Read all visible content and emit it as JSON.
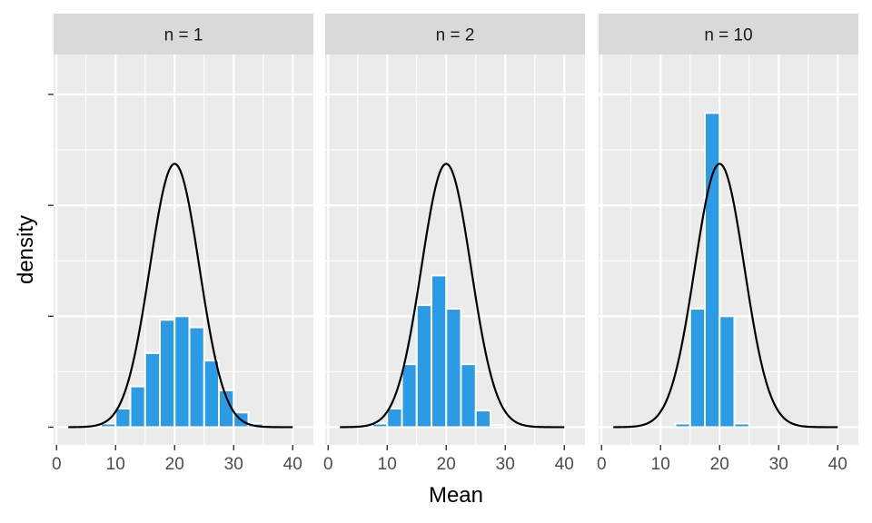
{
  "chart_data": {
    "type": "bar",
    "xlabel": "Mean",
    "ylabel": "density",
    "xlim": [
      -0.5,
      43.5
    ],
    "ylim": [
      -0.0064,
      0.1344
    ],
    "x_ticks": [
      0,
      10,
      20,
      30,
      40
    ],
    "grid": true,
    "bin_width": 2.5,
    "bar_color": "#2c9be6",
    "bar_outline_color": "#ffffff",
    "curve_color": "#000000",
    "panel_background": "#ebebeb",
    "strip_background": "#d9d9d9",
    "curve": {
      "distribution": "normal",
      "mean": 20,
      "sd": 4.2,
      "x_range": [
        2,
        40
      ]
    },
    "panels": [
      {
        "label": "n = 1",
        "bars": [
          {
            "x": 8.75,
            "density": 0.0013
          },
          {
            "x": 11.25,
            "density": 0.0067
          },
          {
            "x": 13.75,
            "density": 0.0147
          },
          {
            "x": 16.25,
            "density": 0.0267
          },
          {
            "x": 18.75,
            "density": 0.0387
          },
          {
            "x": 21.25,
            "density": 0.04
          },
          {
            "x": 23.75,
            "density": 0.036
          },
          {
            "x": 26.25,
            "density": 0.024
          },
          {
            "x": 28.75,
            "density": 0.0133
          },
          {
            "x": 31.25,
            "density": 0.0053
          },
          {
            "x": 33.75,
            "density": 0.0013
          }
        ]
      },
      {
        "label": "n = 2",
        "bars": [
          {
            "x": 8.75,
            "density": 0.0013
          },
          {
            "x": 11.25,
            "density": 0.0067
          },
          {
            "x": 13.75,
            "density": 0.0227
          },
          {
            "x": 16.25,
            "density": 0.044
          },
          {
            "x": 18.75,
            "density": 0.0547
          },
          {
            "x": 21.25,
            "density": 0.0427
          },
          {
            "x": 23.75,
            "density": 0.0227
          },
          {
            "x": 26.25,
            "density": 0.006
          },
          {
            "x": 28.75,
            "density": 0.0007
          }
        ]
      },
      {
        "label": "n = 10",
        "bars": [
          {
            "x": 13.75,
            "density": 0.0013
          },
          {
            "x": 16.25,
            "density": 0.0427
          },
          {
            "x": 18.75,
            "density": 0.1133
          },
          {
            "x": 21.25,
            "density": 0.04
          },
          {
            "x": 23.75,
            "density": 0.0013
          }
        ]
      }
    ]
  }
}
